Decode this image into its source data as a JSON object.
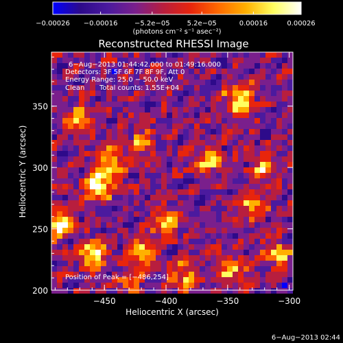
{
  "chart_data": {
    "type": "heatmap",
    "title": "Reconstructed RHESSI Image",
    "xlabel": "Heliocentric X (arcsec)",
    "ylabel": "Heliocentric Y (arcsec)",
    "xlim": [
      -493,
      -297
    ],
    "ylim": [
      200,
      394
    ],
    "x_ticks": [
      {
        "value": -450,
        "label": "−450"
      },
      {
        "value": -400,
        "label": "−400"
      },
      {
        "value": -350,
        "label": "−350"
      },
      {
        "value": -300,
        "label": "−300"
      }
    ],
    "y_ticks": [
      {
        "value": 200,
        "label": "200"
      },
      {
        "value": 250,
        "label": "250"
      },
      {
        "value": 300,
        "label": "300"
      },
      {
        "value": 350,
        "label": "350"
      }
    ],
    "colorbar": {
      "range": [
        -0.00026,
        0.00026
      ],
      "units": "(photons cm⁻² s⁻¹ asec⁻²)",
      "ticks": [
        {
          "value": -0.00026,
          "label": "−0.00026"
        },
        {
          "value": -0.00016,
          "label": "−0.00016"
        },
        {
          "value": -5.2e-05,
          "label": "−5.2e−05"
        },
        {
          "value": 5.2e-05,
          "label": "5.2e−05"
        },
        {
          "value": 0.00016,
          "label": "0.00016"
        },
        {
          "value": 0.00026,
          "label": "0.00026"
        }
      ],
      "colors": [
        "#0000ff",
        "#2d0a8a",
        "#4b1a9e",
        "#7a1f8c",
        "#b81e3e",
        "#e8250c",
        "#ff6a00",
        "#ffb000",
        "#ffff60",
        "#ffffff"
      ]
    },
    "annotations": {
      "time_range": "6−Aug−2013 01:44:42.000 to 01:49:16.000",
      "detectors": "Detectors: 3F 5F 6F 7F 8F 9F, Att 0",
      "energy": "Energy Range: 25.0 − 50.0 keV",
      "clean": "Clean",
      "total_counts": "Total counts: 1.55E+04",
      "peak": "Position of Peak = [−486,254]"
    },
    "footer_timestamp": "6−Aug−2013 02:44",
    "grid": false,
    "bright_regions": [
      {
        "x": -460,
        "y": 230,
        "level": 0.8
      },
      {
        "x": -486,
        "y": 254,
        "level": 1.0
      },
      {
        "x": -420,
        "y": 230,
        "level": 0.75
      },
      {
        "x": -400,
        "y": 255,
        "level": 0.7
      },
      {
        "x": -455,
        "y": 285,
        "level": 0.85
      },
      {
        "x": -445,
        "y": 305,
        "level": 0.75
      },
      {
        "x": -470,
        "y": 340,
        "level": 0.6
      },
      {
        "x": -365,
        "y": 305,
        "level": 0.6
      },
      {
        "x": -340,
        "y": 355,
        "level": 0.85
      },
      {
        "x": -330,
        "y": 270,
        "level": 0.6
      },
      {
        "x": -320,
        "y": 300,
        "level": 0.55
      },
      {
        "x": -420,
        "y": 320,
        "level": 0.5
      },
      {
        "x": -385,
        "y": 210,
        "level": 0.6
      },
      {
        "x": -430,
        "y": 205,
        "level": 0.5
      },
      {
        "x": -345,
        "y": 215,
        "level": 0.6
      },
      {
        "x": -310,
        "y": 230,
        "level": 0.65
      }
    ]
  }
}
